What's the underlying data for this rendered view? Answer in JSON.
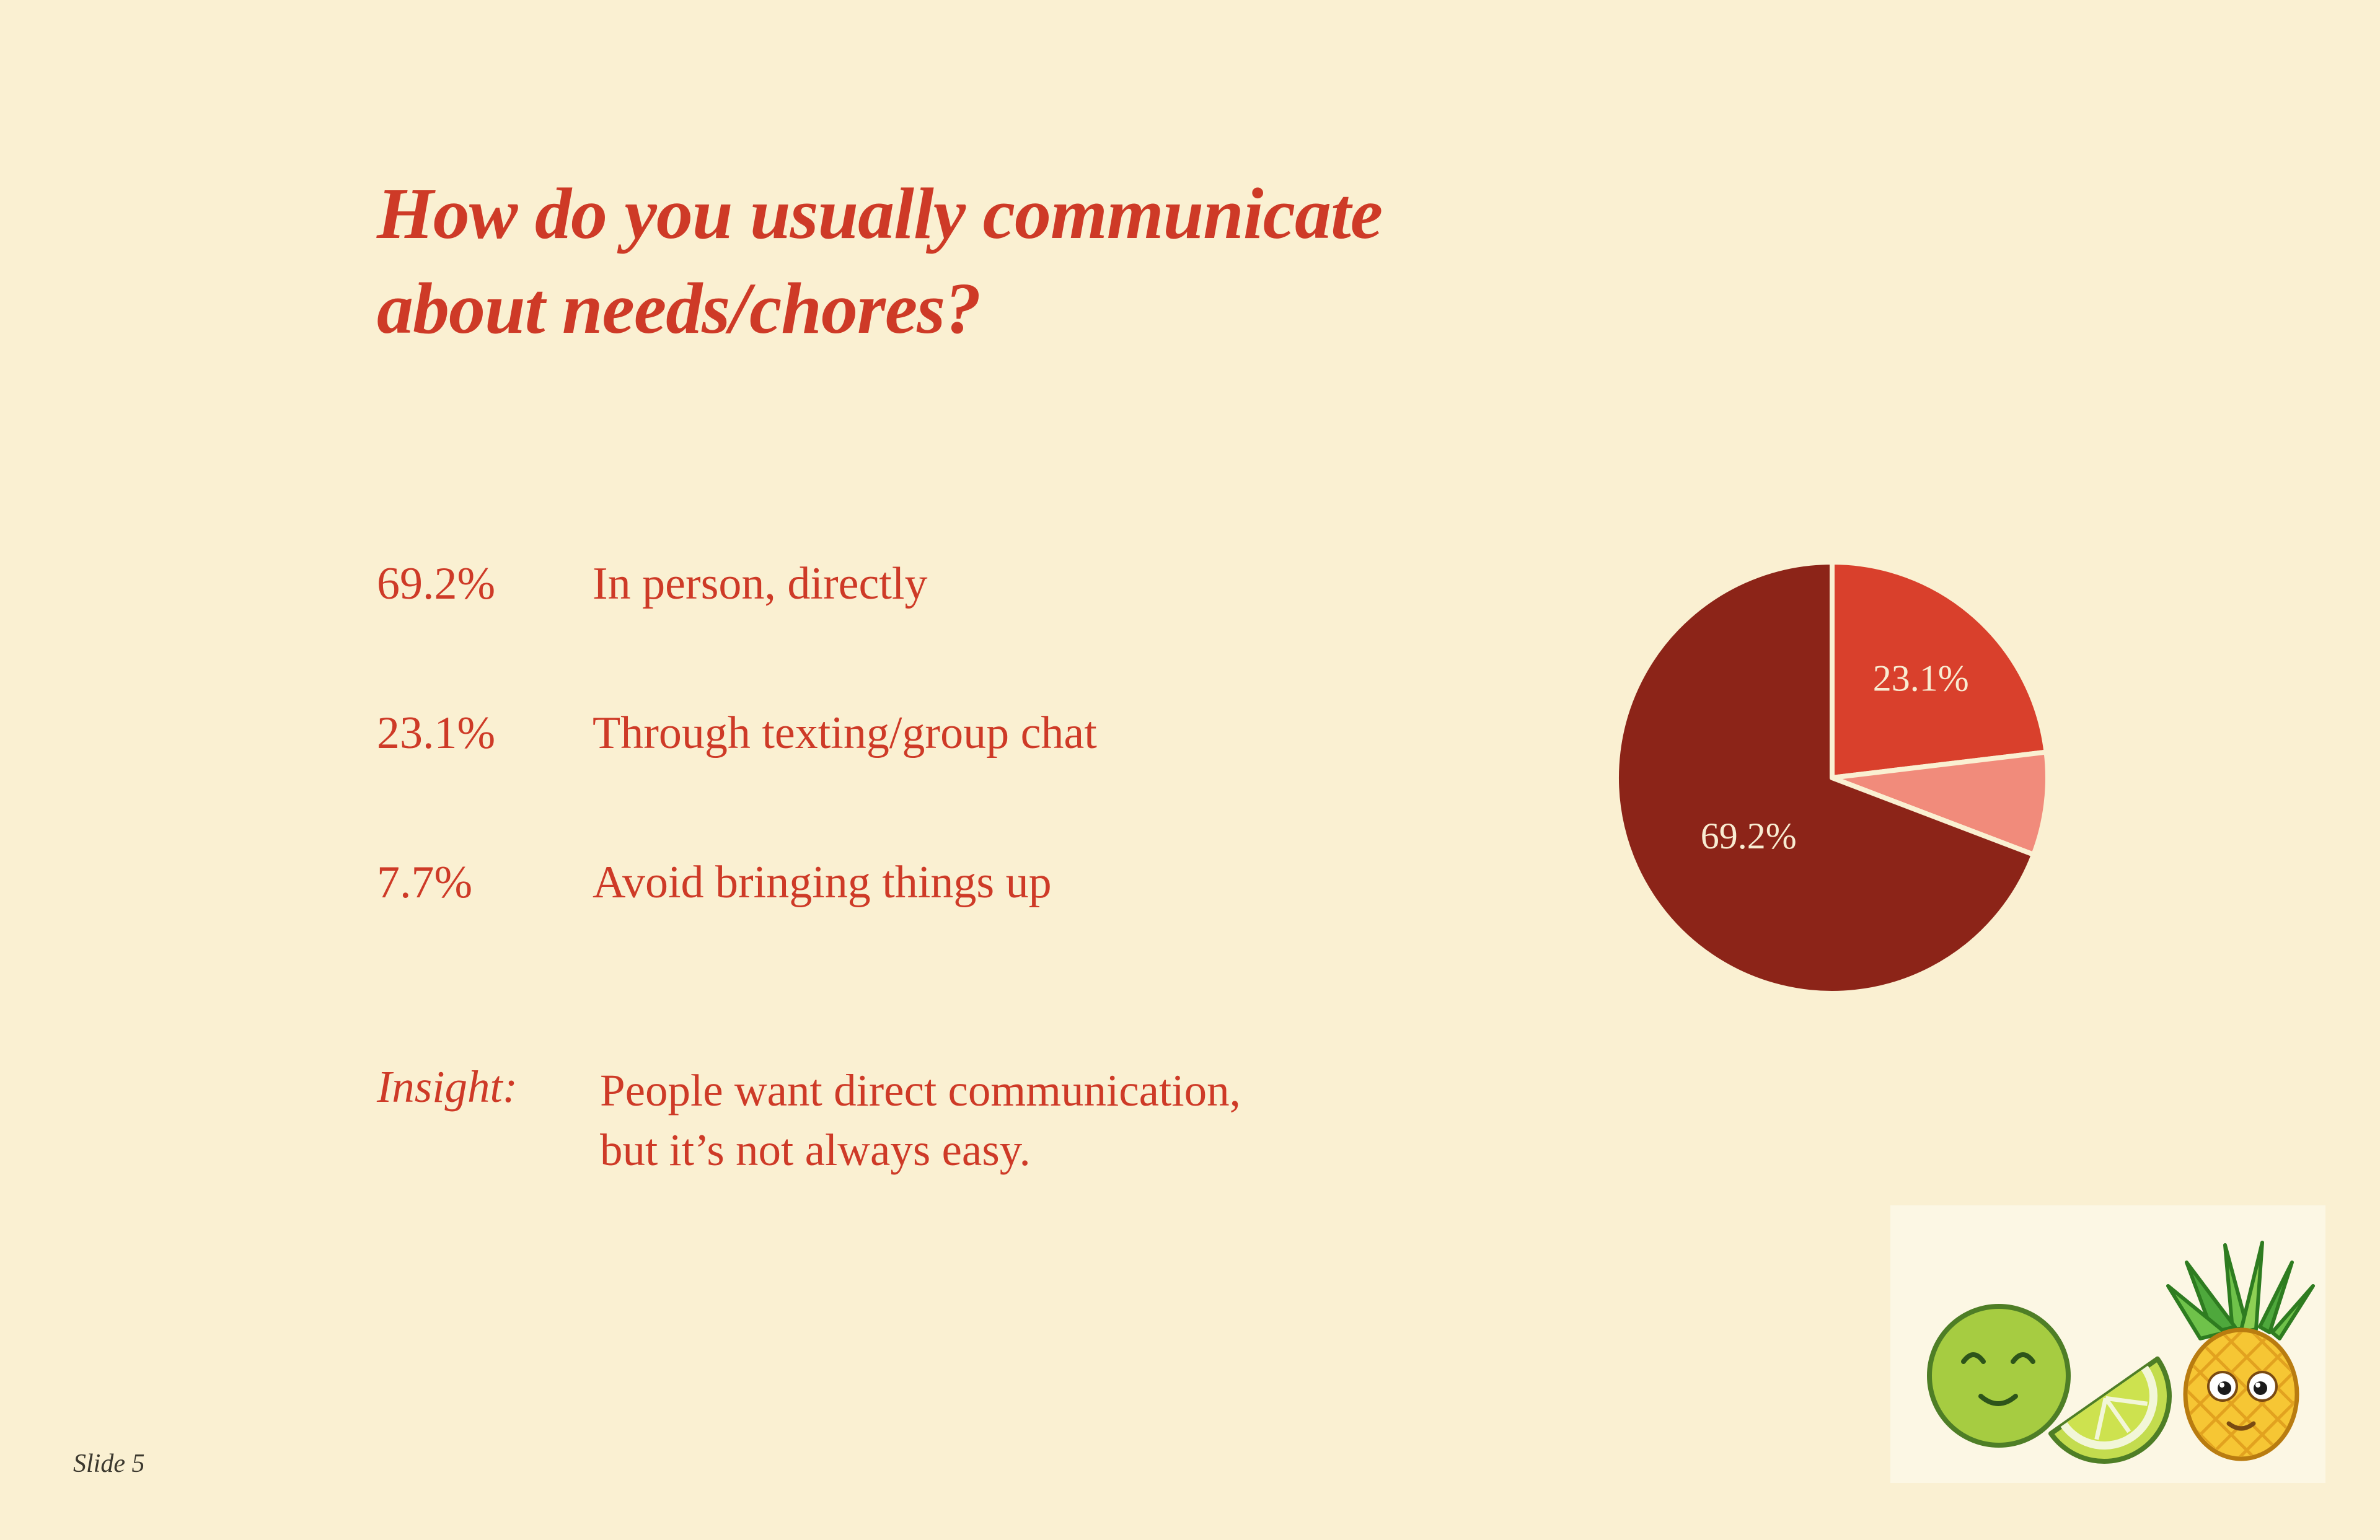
{
  "slide": {
    "title": "How do you usually communicate about needs/chores?",
    "title_lines": [
      "How do you usually communicate",
      "about needs/chores?"
    ],
    "footer": "Slide 5"
  },
  "stats": [
    {
      "percent": "69.2%",
      "label": "In person, directly"
    },
    {
      "percent": "23.1%",
      "label": "Through texting/group chat"
    },
    {
      "percent": "7.7%",
      "label": "Avoid bringing things up"
    }
  ],
  "insight": {
    "label": "Insight:",
    "lines": [
      "People want direct communication,",
      "but it’s not always easy."
    ]
  },
  "chart_data": {
    "type": "pie",
    "title": "How do you usually communicate about needs/chores?",
    "categories": [
      "In person, directly",
      "Through texting/group chat",
      "Avoid bringing things up"
    ],
    "values": [
      69.2,
      23.1,
      7.7
    ],
    "unit": "%",
    "legend": "none",
    "start_angle_deg": 0,
    "direction": "clockwise",
    "slices": [
      {
        "category": "Through texting/group chat",
        "value": 23.1,
        "color": "#d9402c",
        "label": "23.1%",
        "label_radius": 0.62
      },
      {
        "category": "Avoid bringing things up",
        "value": 7.7,
        "color": "#f18b7b",
        "label": "",
        "label_radius": 0
      },
      {
        "category": "In person, directly",
        "value": 69.2,
        "color": "#8c2418",
        "label": "69.2%",
        "label_radius": 0.47
      }
    ]
  },
  "illustrations": {
    "left": "lime-with-wedge",
    "right": "pineapple"
  },
  "colors": {
    "background": "#faf0d2",
    "accent_red": "#ce3a27",
    "pie_dark": "#8c2418",
    "pie_mid": "#d9402c",
    "pie_light": "#f18b7b",
    "pie_label": "#f8ecd2",
    "footer_text": "#3b382e",
    "fruit_box_bg": "#fcf7e4"
  }
}
